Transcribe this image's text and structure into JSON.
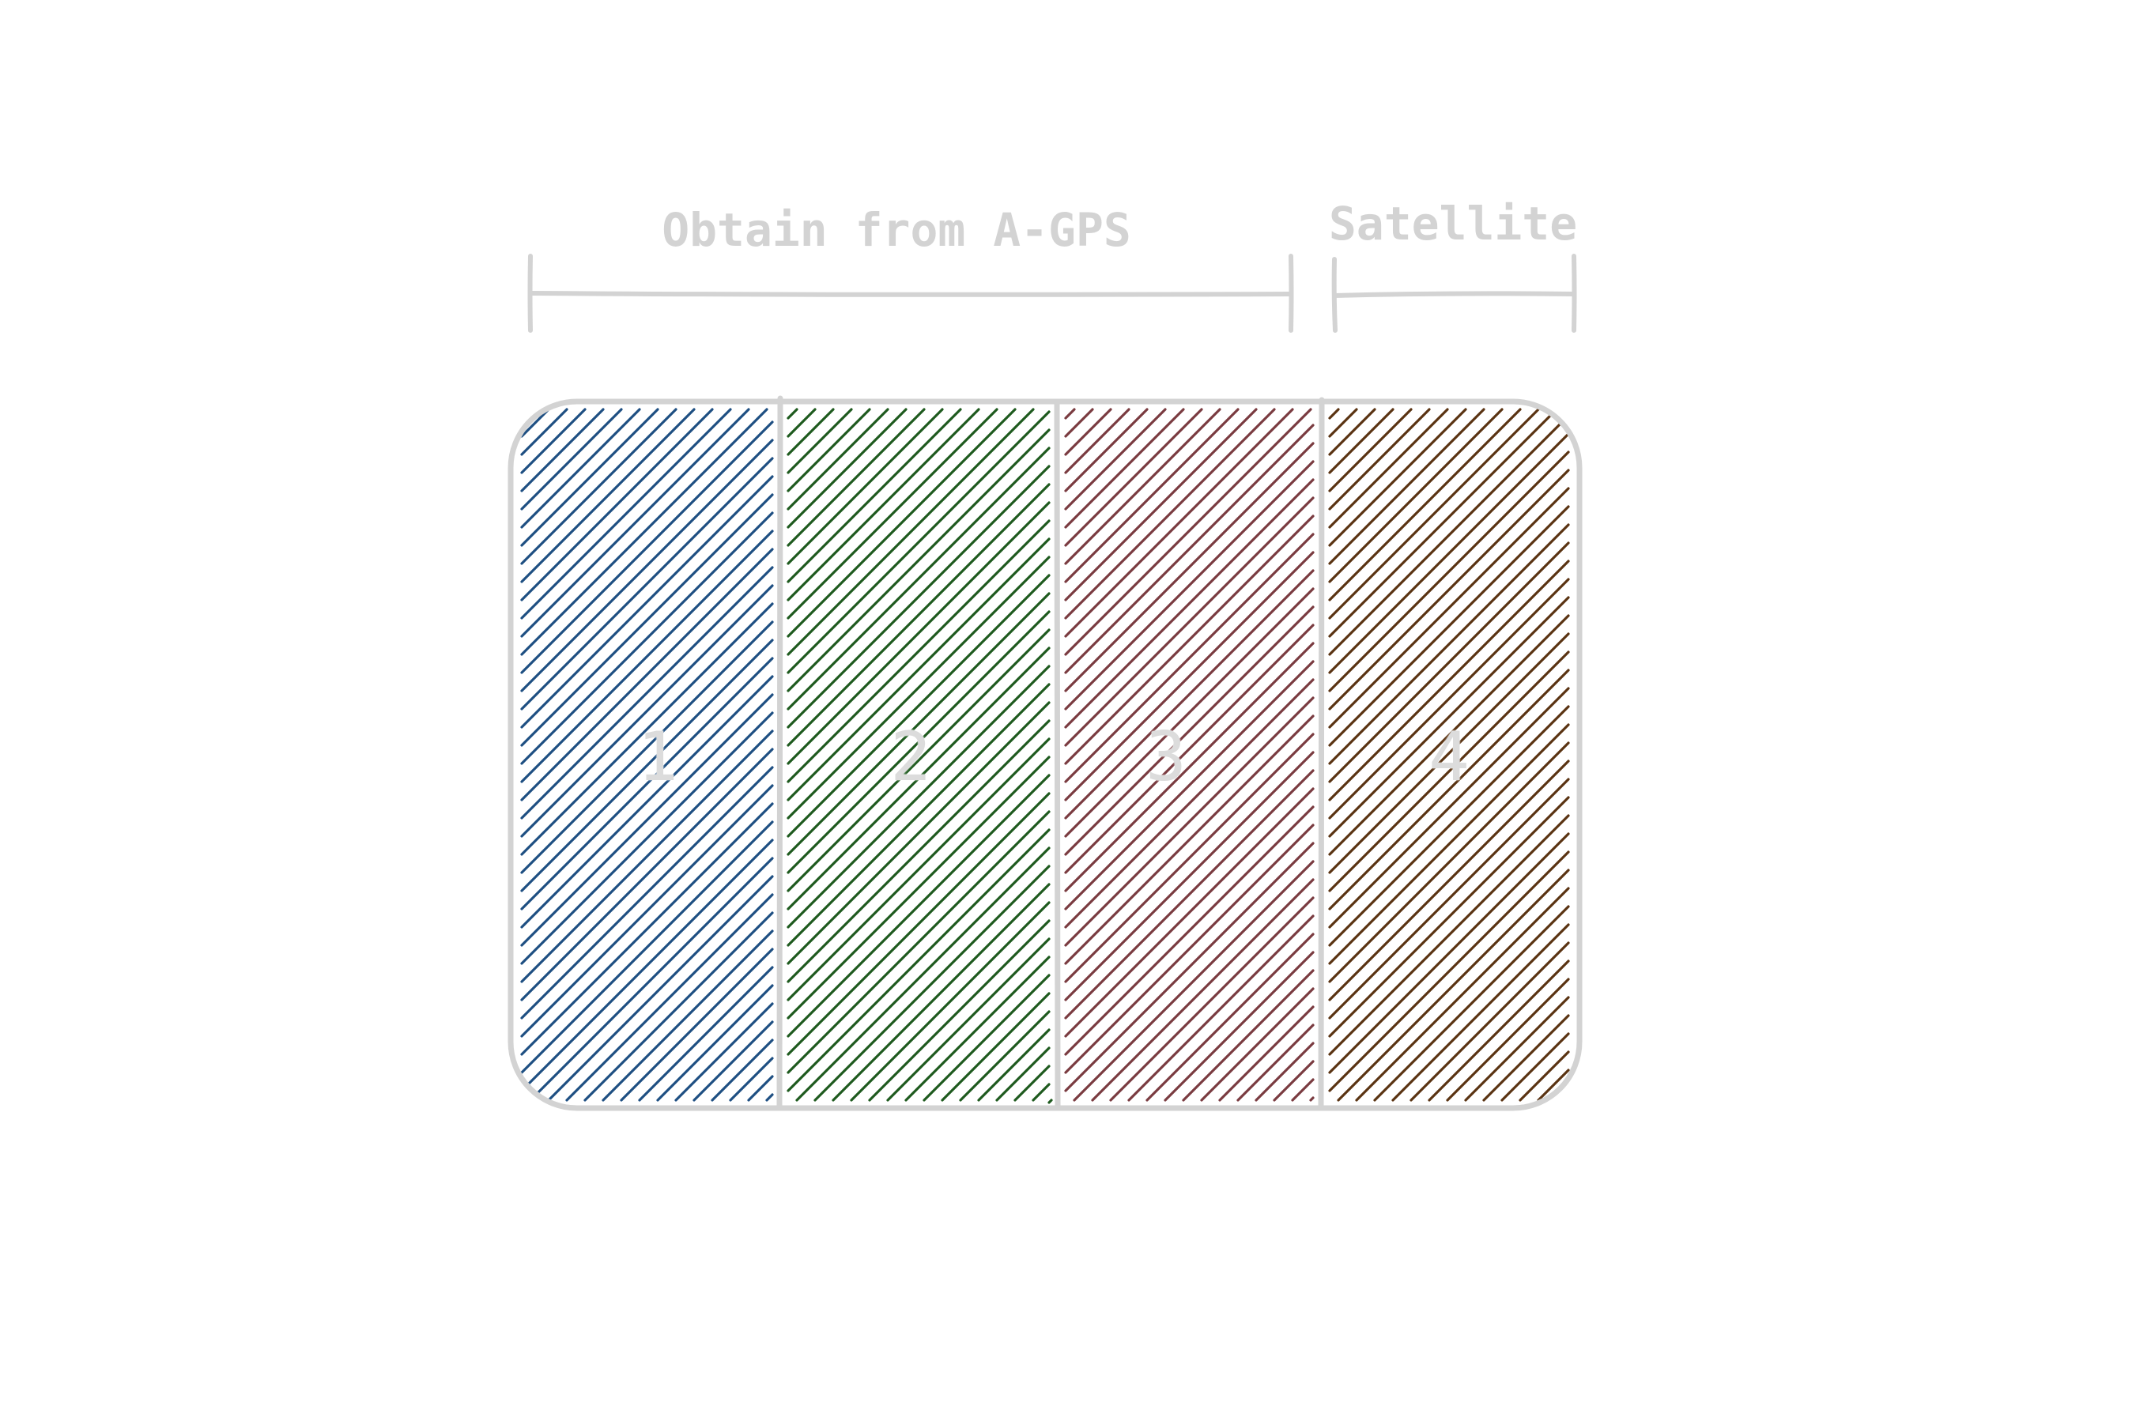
{
  "ranges": [
    {
      "label": "Obtain from A-GPS",
      "segments": [
        1,
        2,
        3
      ]
    },
    {
      "label": "Satellite",
      "segments": [
        4
      ]
    }
  ],
  "segments": [
    {
      "label": "1",
      "color": "#1e4f82"
    },
    {
      "label": "2",
      "color": "#1e5a1e"
    },
    {
      "label": "3",
      "color": "#7a3b40"
    },
    {
      "label": "4",
      "color": "#5a3312"
    }
  ],
  "colors": {
    "outline": "#d3d3d3",
    "text": "#d3d3d3"
  }
}
